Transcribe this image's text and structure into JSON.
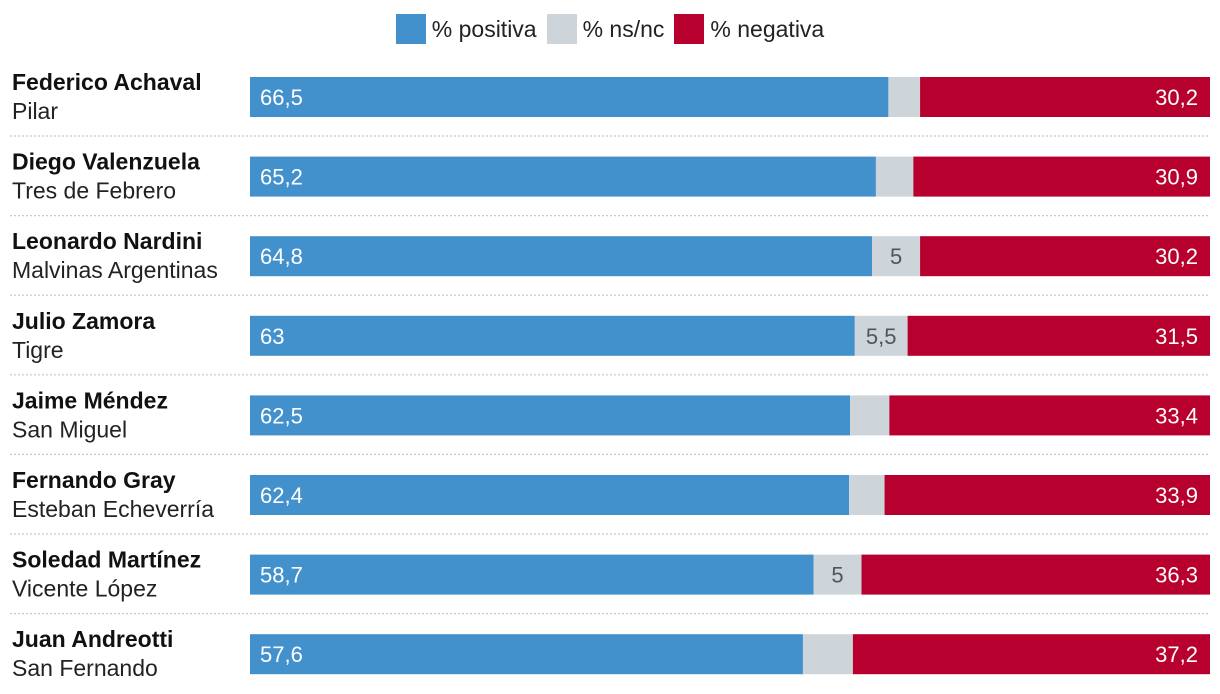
{
  "colors": {
    "positiva": "#4391cc",
    "nsnc": "#cdd5da",
    "negativa": "#b8002e"
  },
  "legend": [
    {
      "key": "positiva",
      "label": "% positiva"
    },
    {
      "key": "nsnc",
      "label": "% ns/nc"
    },
    {
      "key": "negativa",
      "label": "% negativa"
    }
  ],
  "chart_data": {
    "type": "bar",
    "orientation": "horizontal",
    "stacked": true,
    "xlim": [
      0,
      100
    ],
    "grid": false,
    "legend_position": "top-center",
    "categories": [
      {
        "name": "Federico Achaval",
        "place": "Pilar"
      },
      {
        "name": "Diego Valenzuela",
        "place": "Tres de Febrero"
      },
      {
        "name": "Leonardo Nardini",
        "place": "Malvinas Argentinas"
      },
      {
        "name": "Julio Zamora",
        "place": "Tigre"
      },
      {
        "name": "Jaime Méndez",
        "place": "San Miguel"
      },
      {
        "name": "Fernando Gray",
        "place": "Esteban Echeverría"
      },
      {
        "name": "Soledad Martínez",
        "place": "Vicente López"
      },
      {
        "name": "Juan Andreotti",
        "place": "San Fernando"
      }
    ],
    "series": [
      {
        "name": "% positiva",
        "values": [
          66.5,
          65.2,
          64.8,
          63,
          62.5,
          62.4,
          58.7,
          57.6
        ],
        "labels": [
          "66,5",
          "65,2",
          "64,8",
          "63",
          "62,5",
          "62,4",
          "58,7",
          "57,6"
        ]
      },
      {
        "name": "% ns/nc",
        "values": [
          3.3,
          3.9,
          5,
          5.5,
          4.1,
          3.7,
          5,
          5.2
        ],
        "labels": [
          "",
          "",
          "5",
          "5,5",
          "",
          "",
          "5",
          ""
        ]
      },
      {
        "name": "% negativa",
        "values": [
          30.2,
          30.9,
          30.2,
          31.5,
          33.4,
          33.9,
          36.3,
          37.2
        ],
        "labels": [
          "30,2",
          "30,9",
          "30,2",
          "31,5",
          "33,4",
          "33,9",
          "36,3",
          "37,2"
        ]
      }
    ]
  }
}
